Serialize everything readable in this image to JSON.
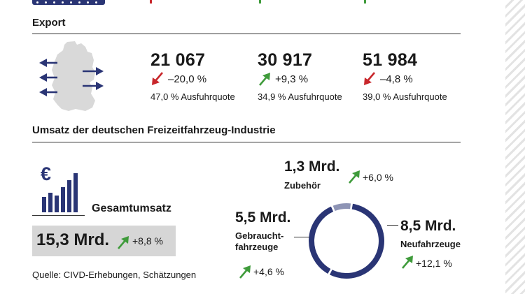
{
  "export": {
    "title": "Export",
    "stats": [
      {
        "value": "21 067",
        "change": "–20,0 %",
        "direction": "down",
        "quote": "47,0 % Ausfuhrquote"
      },
      {
        "value": "30 917",
        "change": "+9,3 %",
        "direction": "up",
        "quote": "34,9 % Ausfuhrquote"
      },
      {
        "value": "51 984",
        "change": "–4,8 %",
        "direction": "down",
        "quote": "39,0 % Ausfuhrquote"
      }
    ]
  },
  "umsatz": {
    "title": "Umsatz der deutschen Freizeitfahrzeug-Industrie",
    "total_label": "Gesamtumsatz",
    "total_value": "15,3 Mrd.",
    "total_change": "+8,8 %",
    "euro_symbol": "€"
  },
  "chart_data": {
    "type": "pie",
    "title": "",
    "unit": "Mrd. €",
    "slices": [
      {
        "label": "Neufahrzeuge",
        "value": 8.5,
        "value_text": "8,5 Mrd.",
        "change": "+12,1 %",
        "color": "#2a3575"
      },
      {
        "label": "Gebraucht-fahrzeuge",
        "label_lines": [
          "Gebraucht-",
          "fahrzeuge"
        ],
        "value": 5.5,
        "value_text": "5,5 Mrd.",
        "change": "+4,6 %",
        "color": "#2a3575"
      },
      {
        "label": "Zubehör",
        "value": 1.3,
        "value_text": "1,3 Mrd.",
        "change": "+6,0 %",
        "color": "#8e94b5"
      }
    ]
  },
  "source": "Quelle: CIVD-Erhebungen, Schätzungen",
  "colors": {
    "navy": "#2a3575",
    "green": "#3f9b3b",
    "red": "#c8262b",
    "map_gray": "#d9d9d9",
    "box_gray": "#d6d6d6"
  },
  "icons": [
    "germany-map-icon",
    "export-arrows-icon",
    "euro-bar-chart-icon",
    "trend-up-arrow-icon",
    "trend-down-arrow-icon"
  ]
}
